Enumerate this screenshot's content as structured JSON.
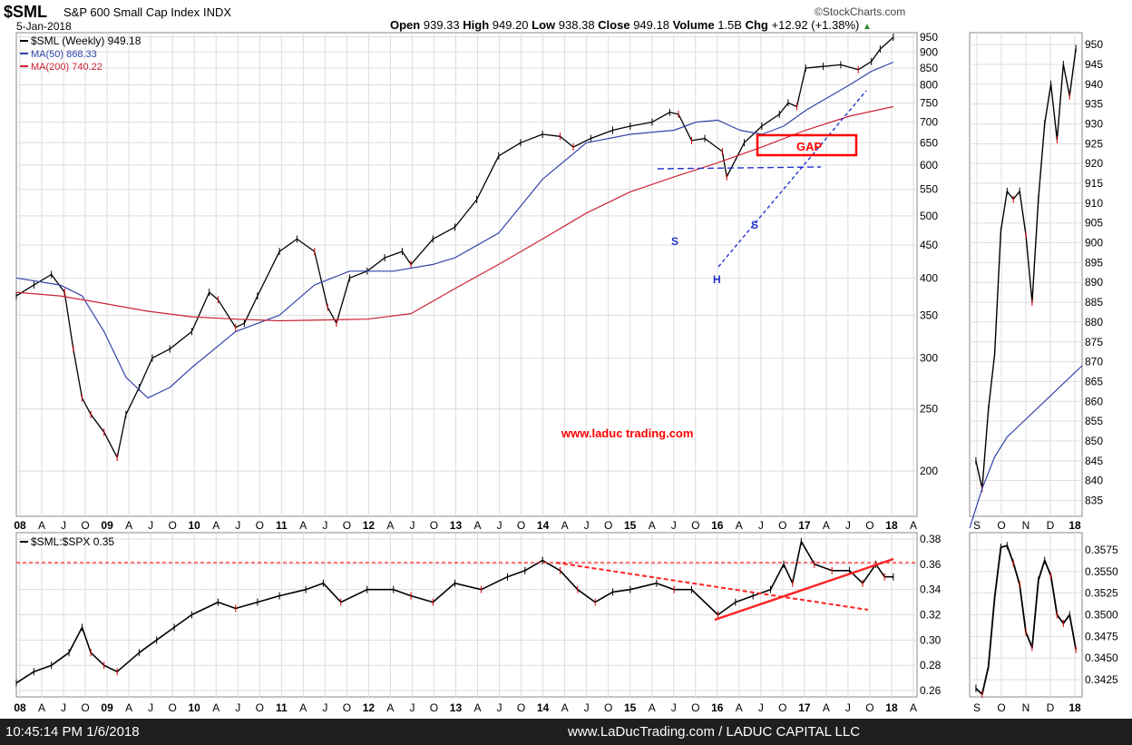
{
  "header": {
    "symbol": "$SML",
    "name": "S&P 600 Small Cap Index",
    "exchange": "INDX",
    "provider": "StockCharts.com",
    "date": "5-Jan-2018",
    "open_label": "Open",
    "open": "939.33",
    "high_label": "High",
    "high": "949.20",
    "low_label": "Low",
    "low": "938.38",
    "close_label": "Close",
    "close": "949.18",
    "volume_label": "Volume",
    "volume": "1.5B",
    "chg_label": "Chg",
    "chg": "+12.92 (+1.38%)"
  },
  "legend": {
    "price": "$SML (Weekly) 949.18",
    "ma50": "MA(50) 868.33",
    "ma200": "MA(200) 740.22"
  },
  "annotations": {
    "watermark": "www.laduc trading.com",
    "gap": "GAP",
    "s_left": "S",
    "head": "H",
    "s_right": "S"
  },
  "footer": {
    "timestamp": "10:45:14 PM 1/6/2018",
    "credit": "www.LaDucTrading.com / LADUC CAPITAL LLC"
  },
  "colors": {
    "price": "#000000",
    "down_bar": "#cc0000",
    "ma50": "#3344aa",
    "ma200": "#cc2233",
    "annotation_red": "#ff0000",
    "annotation_blue": "#2233cc",
    "grid": "#dddddd",
    "footer_bg": "#1f1f1f"
  },
  "chart_data": [
    {
      "id": "main-price",
      "type": "line",
      "title": "$SML S&P 600 Small Cap Index INDX",
      "scale": "log",
      "y_ticks": [
        200,
        250,
        300,
        350,
        400,
        450,
        500,
        550,
        600,
        650,
        700,
        750,
        800,
        850,
        900,
        950
      ],
      "ylim": [
        170,
        965
      ],
      "x_tick_labels": [
        "08",
        "A",
        "J",
        "O",
        "09",
        "A",
        "J",
        "O",
        "10",
        "A",
        "J",
        "O",
        "11",
        "A",
        "J",
        "O",
        "12",
        "A",
        "J",
        "O",
        "13",
        "A",
        "J",
        "O",
        "14",
        "A",
        "J",
        "O",
        "15",
        "A",
        "J",
        "O",
        "16",
        "A",
        "J",
        "O",
        "17",
        "A",
        "J",
        "O",
        "18",
        "A"
      ],
      "xlim": [
        2008.0,
        2018.27
      ],
      "series": [
        {
          "name": "$SML (Weekly)",
          "x": [
            2008.0,
            2008.2,
            2008.4,
            2008.55,
            2008.65,
            2008.75,
            2008.85,
            2009.0,
            2009.15,
            2009.25,
            2009.4,
            2009.55,
            2009.75,
            2010.0,
            2010.2,
            2010.3,
            2010.5,
            2010.6,
            2010.75,
            2011.0,
            2011.2,
            2011.4,
            2011.55,
            2011.65,
            2011.8,
            2012.0,
            2012.2,
            2012.4,
            2012.5,
            2012.75,
            2013.0,
            2013.25,
            2013.5,
            2013.75,
            2014.0,
            2014.2,
            2014.35,
            2014.55,
            2014.8,
            2015.0,
            2015.25,
            2015.45,
            2015.55,
            2015.7,
            2015.85,
            2016.05,
            2016.1,
            2016.3,
            2016.5,
            2016.7,
            2016.8,
            2016.9,
            2017.0,
            2017.2,
            2017.4,
            2017.6,
            2017.75,
            2017.85,
            2018.0
          ],
          "values": [
            375,
            390,
            405,
            380,
            310,
            260,
            245,
            230,
            210,
            245,
            270,
            300,
            310,
            330,
            380,
            370,
            335,
            340,
            375,
            440,
            460,
            440,
            360,
            340,
            400,
            410,
            430,
            440,
            420,
            460,
            480,
            530,
            620,
            650,
            670,
            665,
            640,
            660,
            680,
            690,
            700,
            725,
            720,
            655,
            660,
            630,
            575,
            650,
            690,
            720,
            750,
            740,
            850,
            855,
            860,
            845,
            870,
            910,
            949
          ]
        },
        {
          "name": "MA(50)",
          "x": [
            2008.0,
            2008.5,
            2008.75,
            2009.0,
            2009.25,
            2009.5,
            2009.75,
            2010.0,
            2010.5,
            2011.0,
            2011.4,
            2011.8,
            2012.3,
            2012.75,
            2013.0,
            2013.5,
            2014.0,
            2014.5,
            2015.0,
            2015.5,
            2015.75,
            2016.0,
            2016.25,
            2016.5,
            2016.75,
            2017.0,
            2017.5,
            2017.75,
            2018.0
          ],
          "values": [
            400,
            390,
            375,
            330,
            280,
            260,
            270,
            290,
            330,
            350,
            390,
            410,
            410,
            420,
            430,
            470,
            570,
            650,
            670,
            680,
            700,
            705,
            680,
            670,
            690,
            730,
            800,
            840,
            868
          ]
        },
        {
          "name": "MA(200)",
          "x": [
            2008.0,
            2008.5,
            2009.0,
            2009.5,
            2010.0,
            2010.5,
            2011.0,
            2011.5,
            2012.0,
            2012.5,
            2013.0,
            2013.5,
            2014.0,
            2014.5,
            2015.0,
            2015.5,
            2016.0,
            2016.5,
            2017.0,
            2017.5,
            2018.0
          ],
          "values": [
            380,
            375,
            365,
            355,
            348,
            345,
            343,
            344,
            345,
            352,
            385,
            420,
            460,
            505,
            545,
            575,
            605,
            640,
            680,
            715,
            740
          ]
        }
      ]
    },
    {
      "id": "zoom-price",
      "type": "line",
      "scale": "linear",
      "y_ticks": [
        835,
        840,
        845,
        850,
        855,
        860,
        865,
        870,
        875,
        880,
        885,
        890,
        895,
        900,
        905,
        910,
        915,
        920,
        925,
        930,
        935,
        940,
        945,
        950
      ],
      "ylim": [
        831,
        953
      ],
      "x_tick_labels": [
        "S",
        "O",
        "N",
        "D",
        "18"
      ],
      "xlim": [
        2017.66,
        2018.02
      ],
      "series": [
        {
          "name": "$SML (Weekly)",
          "x": [
            2017.68,
            2017.7,
            2017.72,
            2017.74,
            2017.76,
            2017.78,
            2017.8,
            2017.82,
            2017.84,
            2017.86,
            2017.88,
            2017.9,
            2017.92,
            2017.94,
            2017.96,
            2017.98,
            2018.0
          ],
          "values": [
            845,
            838,
            858,
            872,
            903,
            913,
            911,
            913,
            902,
            885,
            911,
            930,
            940,
            926,
            945,
            937,
            949
          ]
        },
        {
          "name": "MA(50)",
          "x": [
            2017.66,
            2017.7,
            2017.74,
            2017.78,
            2017.82,
            2017.86,
            2017.9,
            2017.94,
            2017.98,
            2018.02
          ],
          "values": [
            828,
            838,
            846,
            851,
            854,
            857,
            860,
            863,
            866,
            869
          ]
        }
      ]
    },
    {
      "id": "ratio",
      "type": "line",
      "title": "$SML:$SPX 0.35",
      "y_ticks": [
        0.26,
        0.28,
        0.3,
        0.32,
        0.34,
        0.36,
        0.38
      ],
      "ylim": [
        0.255,
        0.385
      ],
      "x_tick_labels": [
        "08",
        "A",
        "J",
        "O",
        "09",
        "A",
        "J",
        "O",
        "10",
        "A",
        "J",
        "O",
        "11",
        "A",
        "J",
        "O",
        "12",
        "A",
        "J",
        "O",
        "13",
        "A",
        "J",
        "O",
        "14",
        "A",
        "J",
        "O",
        "15",
        "A",
        "J",
        "O",
        "16",
        "A",
        "J",
        "O",
        "17",
        "A",
        "J",
        "O",
        "18",
        "A"
      ],
      "xlim": [
        2008.0,
        2018.27
      ],
      "series": [
        {
          "name": "$SML:$SPX",
          "x": [
            2008.0,
            2008.2,
            2008.4,
            2008.6,
            2008.75,
            2008.85,
            2009.0,
            2009.15,
            2009.4,
            2009.6,
            2009.8,
            2010.0,
            2010.3,
            2010.5,
            2010.75,
            2011.0,
            2011.3,
            2011.5,
            2011.7,
            2012.0,
            2012.3,
            2012.5,
            2012.75,
            2013.0,
            2013.3,
            2013.6,
            2013.8,
            2014.0,
            2014.2,
            2014.4,
            2014.6,
            2014.8,
            2015.0,
            2015.3,
            2015.5,
            2015.7,
            2016.0,
            2016.2,
            2016.4,
            2016.6,
            2016.75,
            2016.85,
            2016.95,
            2017.1,
            2017.3,
            2017.5,
            2017.65,
            2017.8,
            2017.9,
            2018.0
          ],
          "values": [
            0.266,
            0.275,
            0.28,
            0.29,
            0.31,
            0.29,
            0.28,
            0.275,
            0.29,
            0.3,
            0.31,
            0.32,
            0.33,
            0.325,
            0.33,
            0.335,
            0.34,
            0.345,
            0.33,
            0.34,
            0.34,
            0.335,
            0.33,
            0.345,
            0.34,
            0.35,
            0.355,
            0.363,
            0.355,
            0.34,
            0.33,
            0.338,
            0.34,
            0.345,
            0.34,
            0.34,
            0.32,
            0.33,
            0.335,
            0.34,
            0.36,
            0.345,
            0.378,
            0.36,
            0.355,
            0.355,
            0.345,
            0.36,
            0.35,
            0.35
          ]
        }
      ]
    },
    {
      "id": "zoom-ratio",
      "type": "line",
      "y_ticks": [
        0.3425,
        0.345,
        0.3475,
        0.35,
        0.3525,
        0.355,
        0.3575
      ],
      "ylim": [
        0.3405,
        0.3595
      ],
      "x_tick_labels": [
        "S",
        "O",
        "N",
        "D",
        "18"
      ],
      "xlim": [
        2017.66,
        2018.02
      ],
      "series": [
        {
          "name": "$SML:$SPX",
          "x": [
            2017.68,
            2017.7,
            2017.72,
            2017.74,
            2017.76,
            2017.78,
            2017.8,
            2017.82,
            2017.84,
            2017.86,
            2017.88,
            2017.9,
            2017.92,
            2017.94,
            2017.96,
            2017.98,
            2018.0
          ],
          "values": [
            0.3415,
            0.3408,
            0.344,
            0.352,
            0.3578,
            0.358,
            0.356,
            0.3535,
            0.348,
            0.3462,
            0.354,
            0.3563,
            0.3545,
            0.35,
            0.349,
            0.35,
            0.346
          ]
        }
      ]
    }
  ]
}
